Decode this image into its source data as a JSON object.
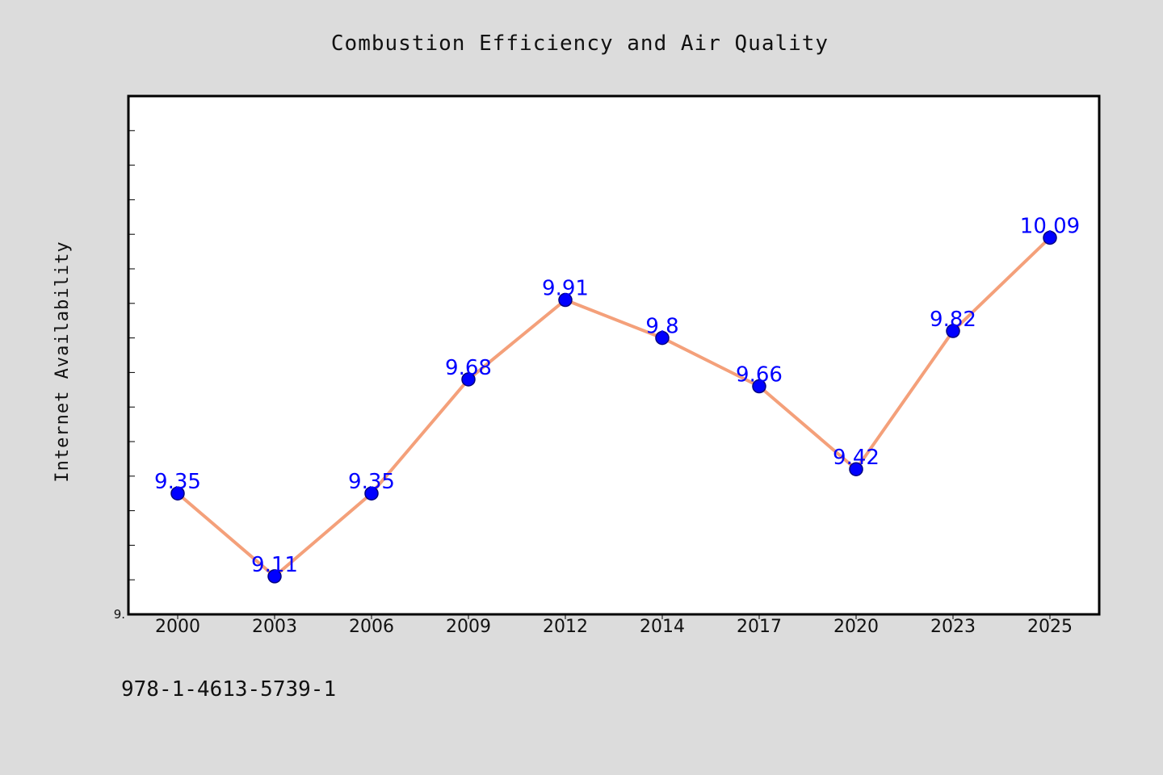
{
  "chart_data": {
    "type": "line",
    "title": "Combustion Efficiency and Air Quality",
    "xlabel": "",
    "ylabel": "Internet Availability",
    "categories": [
      "2000",
      "2003",
      "2006",
      "2009",
      "2012",
      "2014",
      "2017",
      "2020",
      "2023",
      "2025"
    ],
    "series": [
      {
        "values": [
          9.35,
          9.11,
          9.35,
          9.68,
          9.91,
          9.8,
          9.66,
          9.42,
          9.82,
          10.09
        ]
      }
    ],
    "data_labels": [
      "9.35",
      "9.11",
      "9.35",
      "9.68",
      "9.91",
      "9.8",
      "9.66",
      "9.42",
      "9.82",
      "10.09"
    ],
    "ylim": [
      9.0,
      10.5
    ],
    "y_tick_labels": [
      "9."
    ],
    "grid": false,
    "legend": "none",
    "colors": {
      "line": "#f4a07a",
      "marker_fill": "#0000ff",
      "marker_edge": "#000080",
      "data_label": "#0000ff",
      "plot_background": "#ffffff",
      "figure_background": "#dcdcdc"
    }
  },
  "footer": {
    "isbn": "978-1-4613-5739-1"
  }
}
